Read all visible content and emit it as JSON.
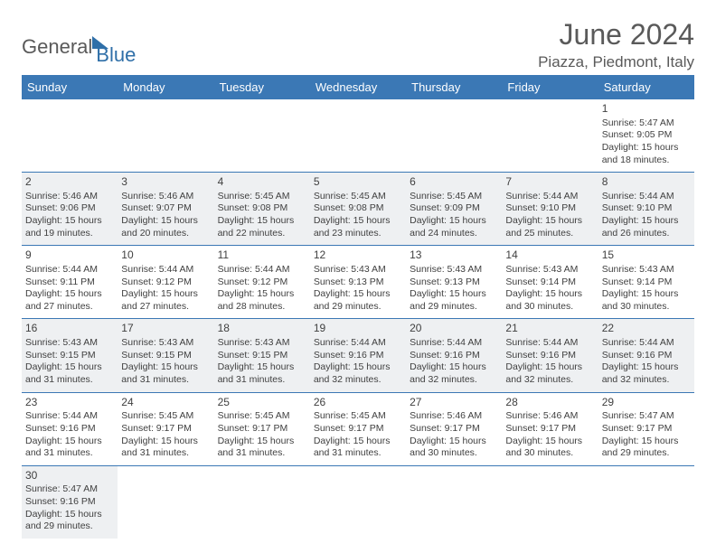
{
  "brand": {
    "part1": "General",
    "part2": "Blue"
  },
  "title": "June 2024",
  "location": "Piazza, Piedmont, Italy",
  "colors": {
    "header_bg": "#3b78b5",
    "header_text": "#ffffff",
    "row_shade": "#eef0f2",
    "rule": "#3b78b5"
  },
  "weekdays": [
    "Sunday",
    "Monday",
    "Tuesday",
    "Wednesday",
    "Thursday",
    "Friday",
    "Saturday"
  ],
  "weeks": [
    [
      null,
      null,
      null,
      null,
      null,
      null,
      {
        "n": "1",
        "sr": "Sunrise: 5:47 AM",
        "ss": "Sunset: 9:05 PM",
        "dl": "Daylight: 15 hours and 18 minutes."
      }
    ],
    [
      {
        "n": "2",
        "sr": "Sunrise: 5:46 AM",
        "ss": "Sunset: 9:06 PM",
        "dl": "Daylight: 15 hours and 19 minutes."
      },
      {
        "n": "3",
        "sr": "Sunrise: 5:46 AM",
        "ss": "Sunset: 9:07 PM",
        "dl": "Daylight: 15 hours and 20 minutes."
      },
      {
        "n": "4",
        "sr": "Sunrise: 5:45 AM",
        "ss": "Sunset: 9:08 PM",
        "dl": "Daylight: 15 hours and 22 minutes."
      },
      {
        "n": "5",
        "sr": "Sunrise: 5:45 AM",
        "ss": "Sunset: 9:08 PM",
        "dl": "Daylight: 15 hours and 23 minutes."
      },
      {
        "n": "6",
        "sr": "Sunrise: 5:45 AM",
        "ss": "Sunset: 9:09 PM",
        "dl": "Daylight: 15 hours and 24 minutes."
      },
      {
        "n": "7",
        "sr": "Sunrise: 5:44 AM",
        "ss": "Sunset: 9:10 PM",
        "dl": "Daylight: 15 hours and 25 minutes."
      },
      {
        "n": "8",
        "sr": "Sunrise: 5:44 AM",
        "ss": "Sunset: 9:10 PM",
        "dl": "Daylight: 15 hours and 26 minutes."
      }
    ],
    [
      {
        "n": "9",
        "sr": "Sunrise: 5:44 AM",
        "ss": "Sunset: 9:11 PM",
        "dl": "Daylight: 15 hours and 27 minutes."
      },
      {
        "n": "10",
        "sr": "Sunrise: 5:44 AM",
        "ss": "Sunset: 9:12 PM",
        "dl": "Daylight: 15 hours and 27 minutes."
      },
      {
        "n": "11",
        "sr": "Sunrise: 5:44 AM",
        "ss": "Sunset: 9:12 PM",
        "dl": "Daylight: 15 hours and 28 minutes."
      },
      {
        "n": "12",
        "sr": "Sunrise: 5:43 AM",
        "ss": "Sunset: 9:13 PM",
        "dl": "Daylight: 15 hours and 29 minutes."
      },
      {
        "n": "13",
        "sr": "Sunrise: 5:43 AM",
        "ss": "Sunset: 9:13 PM",
        "dl": "Daylight: 15 hours and 29 minutes."
      },
      {
        "n": "14",
        "sr": "Sunrise: 5:43 AM",
        "ss": "Sunset: 9:14 PM",
        "dl": "Daylight: 15 hours and 30 minutes."
      },
      {
        "n": "15",
        "sr": "Sunrise: 5:43 AM",
        "ss": "Sunset: 9:14 PM",
        "dl": "Daylight: 15 hours and 30 minutes."
      }
    ],
    [
      {
        "n": "16",
        "sr": "Sunrise: 5:43 AM",
        "ss": "Sunset: 9:15 PM",
        "dl": "Daylight: 15 hours and 31 minutes."
      },
      {
        "n": "17",
        "sr": "Sunrise: 5:43 AM",
        "ss": "Sunset: 9:15 PM",
        "dl": "Daylight: 15 hours and 31 minutes."
      },
      {
        "n": "18",
        "sr": "Sunrise: 5:43 AM",
        "ss": "Sunset: 9:15 PM",
        "dl": "Daylight: 15 hours and 31 minutes."
      },
      {
        "n": "19",
        "sr": "Sunrise: 5:44 AM",
        "ss": "Sunset: 9:16 PM",
        "dl": "Daylight: 15 hours and 32 minutes."
      },
      {
        "n": "20",
        "sr": "Sunrise: 5:44 AM",
        "ss": "Sunset: 9:16 PM",
        "dl": "Daylight: 15 hours and 32 minutes."
      },
      {
        "n": "21",
        "sr": "Sunrise: 5:44 AM",
        "ss": "Sunset: 9:16 PM",
        "dl": "Daylight: 15 hours and 32 minutes."
      },
      {
        "n": "22",
        "sr": "Sunrise: 5:44 AM",
        "ss": "Sunset: 9:16 PM",
        "dl": "Daylight: 15 hours and 32 minutes."
      }
    ],
    [
      {
        "n": "23",
        "sr": "Sunrise: 5:44 AM",
        "ss": "Sunset: 9:16 PM",
        "dl": "Daylight: 15 hours and 31 minutes."
      },
      {
        "n": "24",
        "sr": "Sunrise: 5:45 AM",
        "ss": "Sunset: 9:17 PM",
        "dl": "Daylight: 15 hours and 31 minutes."
      },
      {
        "n": "25",
        "sr": "Sunrise: 5:45 AM",
        "ss": "Sunset: 9:17 PM",
        "dl": "Daylight: 15 hours and 31 minutes."
      },
      {
        "n": "26",
        "sr": "Sunrise: 5:45 AM",
        "ss": "Sunset: 9:17 PM",
        "dl": "Daylight: 15 hours and 31 minutes."
      },
      {
        "n": "27",
        "sr": "Sunrise: 5:46 AM",
        "ss": "Sunset: 9:17 PM",
        "dl": "Daylight: 15 hours and 30 minutes."
      },
      {
        "n": "28",
        "sr": "Sunrise: 5:46 AM",
        "ss": "Sunset: 9:17 PM",
        "dl": "Daylight: 15 hours and 30 minutes."
      },
      {
        "n": "29",
        "sr": "Sunrise: 5:47 AM",
        "ss": "Sunset: 9:17 PM",
        "dl": "Daylight: 15 hours and 29 minutes."
      }
    ],
    [
      {
        "n": "30",
        "sr": "Sunrise: 5:47 AM",
        "ss": "Sunset: 9:16 PM",
        "dl": "Daylight: 15 hours and 29 minutes."
      },
      null,
      null,
      null,
      null,
      null,
      null
    ]
  ]
}
